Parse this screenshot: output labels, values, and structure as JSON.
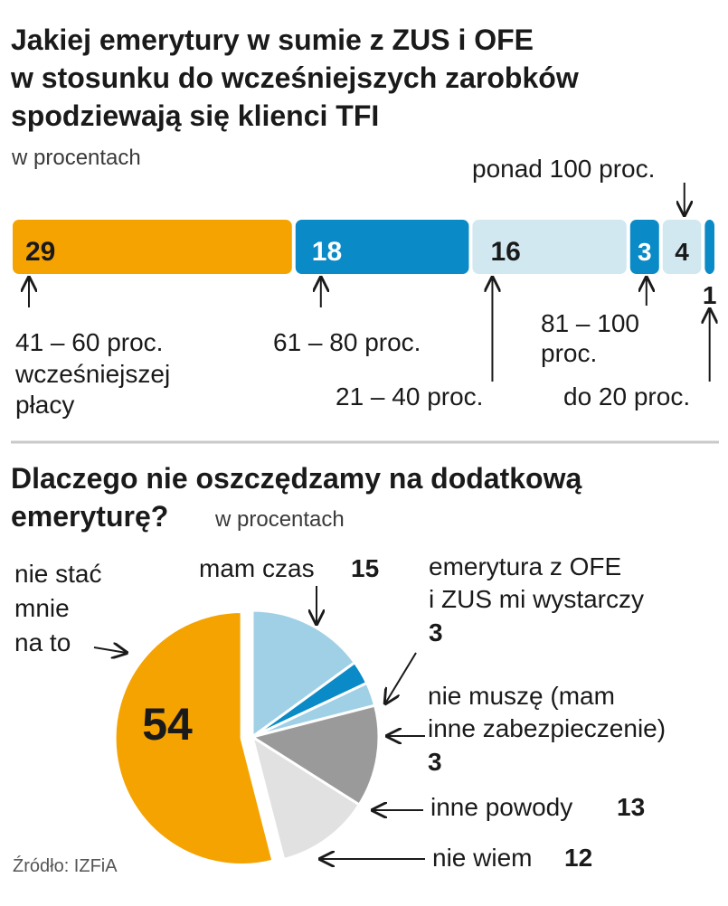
{
  "colors": {
    "orange": "#f5a300",
    "blue": "#0a8ac6",
    "light_blue": "#9fd0e6",
    "pale_blue": "#d2e8f1",
    "gray": "#9a9a9a",
    "light_gray": "#e1e1e1",
    "text": "#1a1a1a"
  },
  "chart_data": [
    {
      "type": "bar",
      "orientation": "stacked-horizontal",
      "title_lines": [
        "Jakiej emerytury w sumie z ZUS i OFE",
        "w stosunku do wcześniejszych zarobków",
        "spodziewają się klienci TFI"
      ],
      "subtitle": "w procentach",
      "segments": [
        {
          "label_lines": [
            "41 – 60 proc.",
            "wcześniejszej",
            "płacy"
          ],
          "value": 29,
          "color": "orange"
        },
        {
          "label_lines": [
            "61 – 80 proc."
          ],
          "value": 18,
          "color": "blue"
        },
        {
          "label_lines": [
            "21 – 40 proc."
          ],
          "value": 16,
          "color": "pale_blue"
        },
        {
          "label_lines": [
            "81 – 100",
            "proc."
          ],
          "value": 3,
          "color": "blue"
        },
        {
          "label_lines": [
            "ponad 100 proc."
          ],
          "value": 4,
          "color": "pale_blue"
        },
        {
          "label_lines": [
            "do 20 proc."
          ],
          "value": 1,
          "color": "blue"
        }
      ]
    },
    {
      "type": "pie",
      "title_lines": [
        "Dlaczego nie oszczędzamy na dodatkową",
        "emeryturę?"
      ],
      "subtitle": "w procentach",
      "slices": [
        {
          "label_lines": [
            "nie stać",
            "mnie",
            "na to"
          ],
          "value": 54,
          "color": "orange"
        },
        {
          "label_lines": [
            "mam czas"
          ],
          "value": 15,
          "color": "light_blue"
        },
        {
          "label_lines": [
            "emerytura z OFE",
            "i ZUS mi wystarczy"
          ],
          "value": 3,
          "color": "blue"
        },
        {
          "label_lines": [
            "nie muszę (mam",
            "inne zabezpieczenie)"
          ],
          "value": 3,
          "color": "light_blue"
        },
        {
          "label_lines": [
            "inne powody"
          ],
          "value": 13,
          "color": "gray"
        },
        {
          "label_lines": [
            "nie wiem"
          ],
          "value": 12,
          "color": "light_gray"
        }
      ]
    }
  ],
  "source": "Źródło: IZFiA"
}
